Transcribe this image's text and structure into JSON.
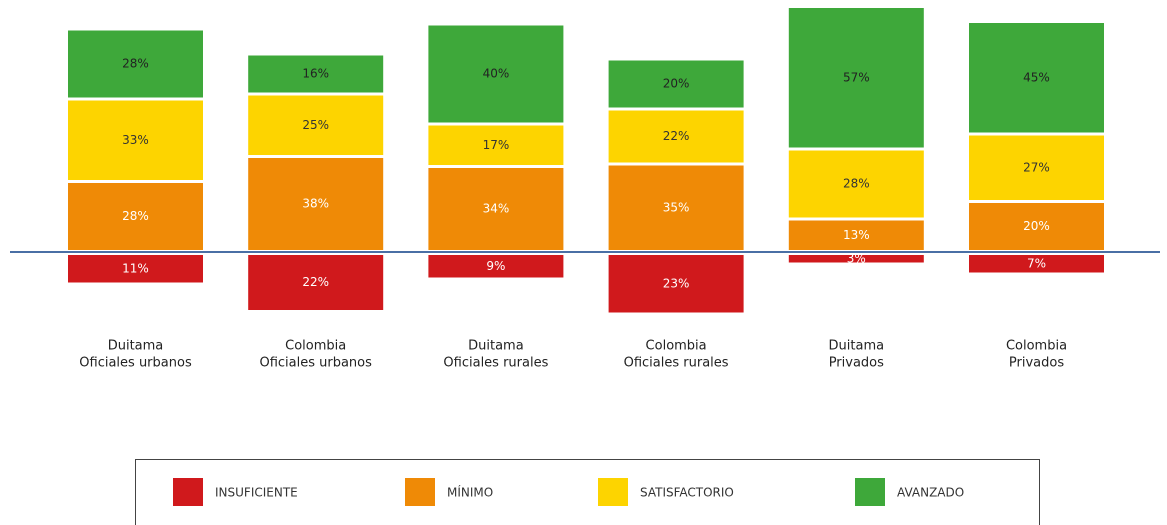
{
  "chart_data": {
    "type": "diverging-stacked-bar",
    "categories": [
      [
        "Duitama",
        "Oficiales urbanos"
      ],
      [
        "Colombia",
        "Oficiales urbanos"
      ],
      [
        "Duitama",
        "Oficiales rurales"
      ],
      [
        "Colombia",
        "Oficiales rurales"
      ],
      [
        "Duitama",
        "Privados"
      ],
      [
        "Colombia",
        "Privados"
      ]
    ],
    "series": [
      {
        "name": "INSUFICIENTE",
        "color": "#d0191c",
        "label_color": "#ffffff",
        "values": [
          11,
          22,
          9,
          23,
          3,
          7
        ],
        "value_labels": [
          "11%",
          "22%",
          "9%",
          "23%",
          "3%",
          "7%"
        ]
      },
      {
        "name": "MÍNIMO",
        "color": "#ef8a06",
        "label_color": "#ffffff",
        "values": [
          28,
          38,
          34,
          35,
          13,
          20
        ],
        "value_labels": [
          "28%",
          "38%",
          "34%",
          "35%",
          "13%",
          "20%"
        ]
      },
      {
        "name": "SATISFACTORIO",
        "color": "#fdd400",
        "label_color": "#333333",
        "values": [
          33,
          25,
          17,
          22,
          28,
          27
        ],
        "value_labels": [
          "33%",
          "25%",
          "17%",
          "22%",
          "28%",
          "27%"
        ]
      },
      {
        "name": "AVANZADO",
        "color": "#3ea83a",
        "label_color": "#222222",
        "values": [
          28,
          16,
          40,
          20,
          57,
          45
        ],
        "value_labels": [
          "28%",
          "16%",
          "40%",
          "20%",
          "57%",
          "45%"
        ]
      }
    ]
  }
}
